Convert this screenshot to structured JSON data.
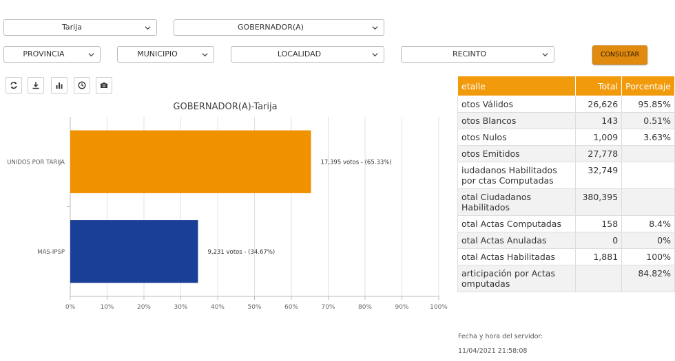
{
  "filters": {
    "departamento": "Tarija",
    "cargo": "GOBERNADOR(A)",
    "provincia": "PROVINCIA",
    "municipio": "MUNICIPIO",
    "localidad": "LOCALIDAD",
    "recinto": "RECINTO",
    "consultar_label": "CONSULTAR"
  },
  "toolbar": [
    "refresh-icon",
    "download-icon",
    "bar-chart-icon",
    "clock-icon",
    "camera-icon"
  ],
  "chart_data": {
    "type": "bar",
    "orientation": "horizontal",
    "title": "GOBERNADOR(A)-Tarija",
    "categories": [
      "UNIDOS POR TARIJA",
      "MAS-IPSP"
    ],
    "values": [
      65.33,
      34.67
    ],
    "votes": [
      17395,
      9231
    ],
    "data_labels": [
      "17,395 votos - (65.33%)",
      "9,231 votos - (34.67%)"
    ],
    "colors": [
      "#f09100",
      "#1a3f96"
    ],
    "xlim": [
      0,
      100
    ],
    "xticks": [
      "0%",
      "10%",
      "20%",
      "30%",
      "40%",
      "50%",
      "60%",
      "70%",
      "80%",
      "90%",
      "100%"
    ],
    "grid": true
  },
  "table": {
    "headers": [
      "etalle",
      "Total",
      "Porcentaje"
    ],
    "rows": [
      [
        "otos Válidos",
        "26,626",
        "95.85%"
      ],
      [
        "otos Blancos",
        "143",
        "0.51%"
      ],
      [
        "otos Nulos",
        "1,009",
        "3.63%"
      ],
      [
        "otos Emitidos",
        "27,778",
        ""
      ],
      [
        "iudadanos Habilitados por ctas Computadas",
        "32,749",
        ""
      ],
      [
        "otal Ciudadanos Habilitados",
        "380,395",
        ""
      ],
      [
        "otal Actas Computadas",
        "158",
        "8.4%"
      ],
      [
        "otal Actas Anuladas",
        "0",
        "0%"
      ],
      [
        "otal Actas Habilitadas",
        "1,881",
        "100%"
      ],
      [
        "articipación por Actas omputadas",
        "",
        "84.82%"
      ]
    ]
  },
  "footer": {
    "label": "Fecha y hora del servidor:",
    "datetime": "11/04/2021 21:58:08"
  }
}
